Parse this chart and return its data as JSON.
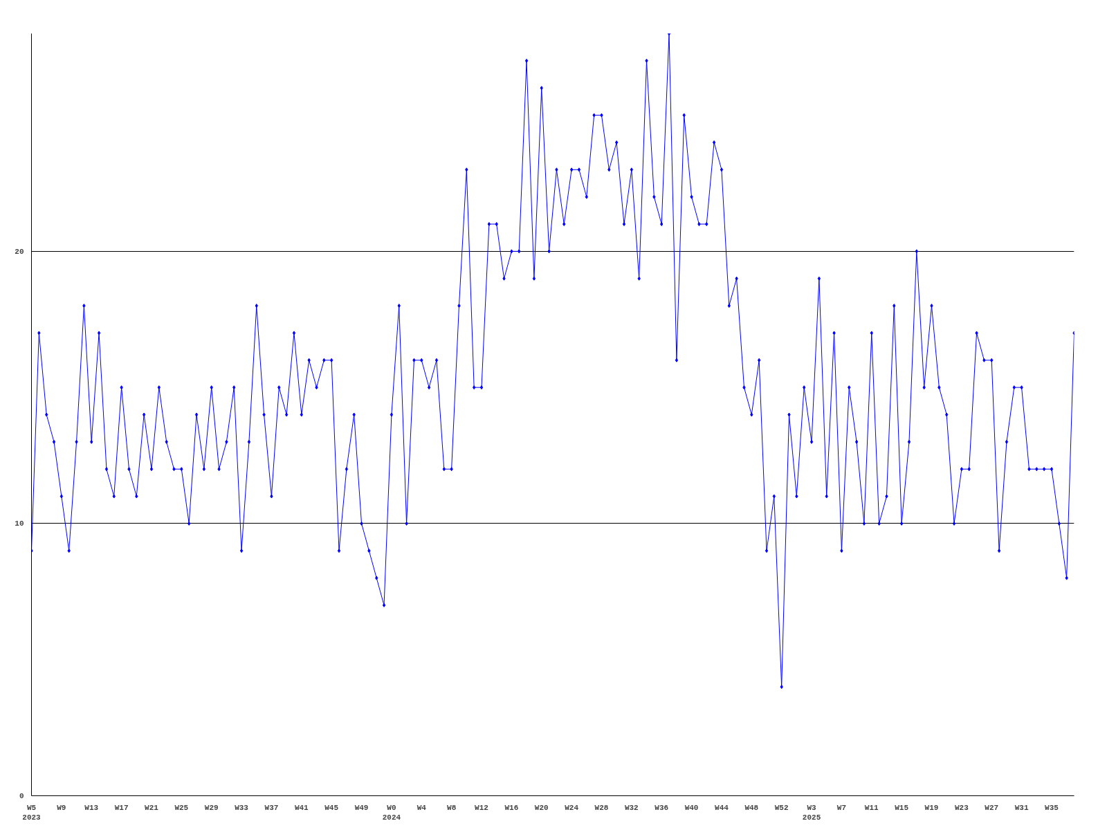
{
  "chart_data": {
    "type": "line",
    "categories": [
      "W5\n2023",
      null,
      null,
      null,
      "W9",
      null,
      null,
      null,
      "W13",
      null,
      null,
      null,
      "W17",
      null,
      null,
      null,
      "W21",
      null,
      null,
      null,
      "W25",
      null,
      null,
      null,
      "W29",
      null,
      null,
      null,
      "W33",
      null,
      null,
      null,
      "W37",
      null,
      null,
      null,
      "W41",
      null,
      null,
      null,
      "W45",
      null,
      null,
      null,
      "W49",
      null,
      null,
      null,
      "W0\n2024",
      null,
      null,
      null,
      "W4",
      null,
      null,
      null,
      "W8",
      null,
      null,
      null,
      "W12",
      null,
      null,
      null,
      "W16",
      null,
      null,
      null,
      "W20",
      null,
      null,
      null,
      "W24",
      null,
      null,
      null,
      "W28",
      null,
      null,
      null,
      "W32",
      null,
      null,
      null,
      "W36",
      null,
      null,
      null,
      "W40",
      null,
      null,
      null,
      "W44",
      null,
      null,
      null,
      "W48",
      null,
      null,
      null,
      "W52",
      null,
      null,
      null,
      "W3\n2025",
      null,
      null,
      null,
      "W7",
      null,
      null,
      null,
      "W11",
      null,
      null,
      null,
      "W15",
      null,
      null,
      null,
      "W19",
      null,
      null,
      null,
      "W23",
      null,
      null,
      null,
      "W27",
      null,
      null,
      null,
      "W31",
      null,
      null,
      null,
      "W35",
      null,
      null,
      null
    ],
    "series": [
      {
        "color": "#0000ff",
        "values": [
          9,
          17,
          14,
          13,
          11,
          9,
          13,
          18,
          13,
          17,
          12,
          11,
          15,
          12,
          11,
          14,
          12,
          15,
          13,
          12,
          12,
          10,
          14,
          12,
          15,
          12,
          13,
          15,
          9,
          13,
          18,
          14,
          11,
          15,
          14,
          17,
          14,
          16,
          15,
          16,
          16,
          9,
          12,
          14,
          10,
          9,
          8,
          7,
          14,
          18,
          10,
          16,
          16,
          15,
          16,
          12,
          12,
          18,
          23,
          15,
          15,
          21,
          21,
          19,
          20,
          20,
          27,
          19,
          26,
          20,
          23,
          21,
          23,
          23,
          22,
          25,
          25,
          23,
          24,
          21,
          23,
          19,
          27,
          22,
          21,
          28,
          16,
          25,
          22,
          21,
          21,
          24,
          23,
          18,
          19,
          15,
          14,
          16,
          9,
          11,
          4,
          14,
          11,
          15,
          13,
          19,
          11,
          17,
          9,
          15,
          13,
          10,
          17,
          10,
          11,
          18,
          10,
          13,
          20,
          15,
          18,
          15,
          14,
          10,
          12,
          12,
          17,
          16,
          16,
          9,
          13,
          15,
          15,
          12,
          12,
          12,
          12,
          10,
          8,
          17
        ]
      }
    ],
    "ylim": [
      0,
      28
    ],
    "yticks": [
      0,
      10,
      20
    ],
    "grid": "y",
    "marker": "diamond",
    "line_style": "solid"
  }
}
